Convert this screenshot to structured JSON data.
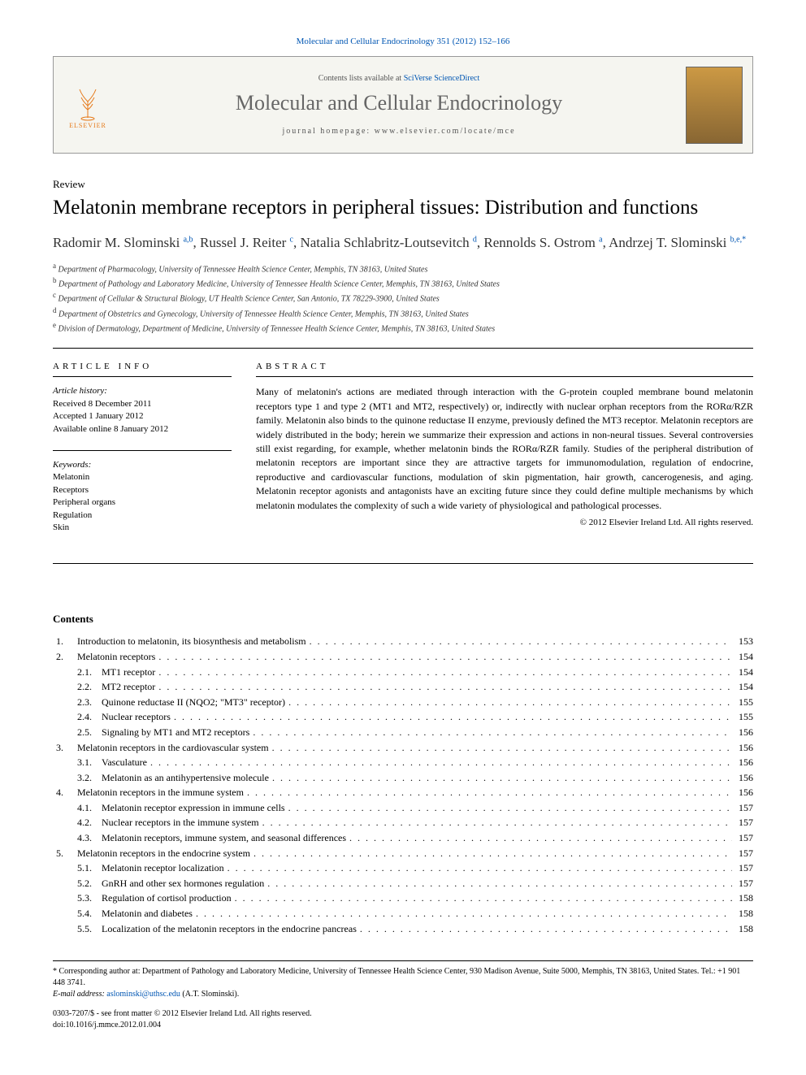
{
  "citation": "Molecular and Cellular Endocrinology 351 (2012) 152–166",
  "header": {
    "contents_available_prefix": "Contents lists available at ",
    "contents_available_link": "SciVerse ScienceDirect",
    "journal_name": "Molecular and Cellular Endocrinology",
    "homepage_prefix": "journal homepage: ",
    "homepage_url": "www.elsevier.com/locate/mce",
    "publisher_logo_text": "ELSEVIER"
  },
  "article": {
    "type": "Review",
    "title": "Melatonin membrane receptors in peripheral tissues: Distribution and functions",
    "authors_html": "Radomir M. Slominski <sup>a,b</sup>, Russel J. Reiter <sup>c</sup>, Natalia Schlabritz-Loutsevitch <sup>d</sup>, Rennolds S. Ostrom <sup>a</sup>, Andrzej T. Slominski <sup>b,e,*</sup>",
    "affiliations": [
      {
        "sup": "a",
        "text": "Department of Pharmacology, University of Tennessee Health Science Center, Memphis, TN 38163, United States"
      },
      {
        "sup": "b",
        "text": "Department of Pathology and Laboratory Medicine, University of Tennessee Health Science Center, Memphis, TN 38163, United States"
      },
      {
        "sup": "c",
        "text": "Department of Cellular & Structural Biology, UT Health Science Center, San Antonio, TX 78229-3900, United States"
      },
      {
        "sup": "d",
        "text": "Department of Obstetrics and Gynecology, University of Tennessee Health Science Center, Memphis, TN 38163, United States"
      },
      {
        "sup": "e",
        "text": "Division of Dermatology, Department of Medicine, University of Tennessee Health Science Center, Memphis, TN 38163, United States"
      }
    ]
  },
  "info": {
    "label": "ARTICLE INFO",
    "history_title": "Article history:",
    "history": [
      "Received 8 December 2011",
      "Accepted 1 January 2012",
      "Available online 8 January 2012"
    ],
    "keywords_title": "Keywords:",
    "keywords": [
      "Melatonin",
      "Receptors",
      "Peripheral organs",
      "Regulation",
      "Skin"
    ]
  },
  "abstract": {
    "label": "ABSTRACT",
    "text": "Many of melatonin's actions are mediated through interaction with the G-protein coupled membrane bound melatonin receptors type 1 and type 2 (MT1 and MT2, respectively) or, indirectly with nuclear orphan receptors from the RORα/RZR family. Melatonin also binds to the quinone reductase II enzyme, previously defined the MT3 receptor. Melatonin receptors are widely distributed in the body; herein we summarize their expression and actions in non-neural tissues. Several controversies still exist regarding, for example, whether melatonin binds the RORα/RZR family. Studies of the peripheral distribution of melatonin receptors are important since they are attractive targets for immunomodulation, regulation of endocrine, reproductive and cardiovascular functions, modulation of skin pigmentation, hair growth, cancerogenesis, and aging. Melatonin receptor agonists and antagonists have an exciting future since they could define multiple mechanisms by which melatonin modulates the complexity of such a wide variety of physiological and pathological processes.",
    "copyright": "© 2012 Elsevier Ireland Ltd. All rights reserved."
  },
  "contents": {
    "heading": "Contents",
    "items": [
      {
        "level": 1,
        "num": "1.",
        "title": "Introduction to melatonin, its biosynthesis and metabolism",
        "page": "153"
      },
      {
        "level": 1,
        "num": "2.",
        "title": "Melatonin receptors",
        "page": "154"
      },
      {
        "level": 2,
        "num": "2.1.",
        "title": "MT1 receptor",
        "page": "154"
      },
      {
        "level": 2,
        "num": "2.2.",
        "title": "MT2 receptor",
        "page": "154"
      },
      {
        "level": 2,
        "num": "2.3.",
        "title": "Quinone reductase II (NQO2; \"MT3\" receptor)",
        "page": "155"
      },
      {
        "level": 2,
        "num": "2.4.",
        "title": "Nuclear receptors",
        "page": "155"
      },
      {
        "level": 2,
        "num": "2.5.",
        "title": "Signaling by MT1 and MT2 receptors",
        "page": "156"
      },
      {
        "level": 1,
        "num": "3.",
        "title": "Melatonin receptors in the cardiovascular system",
        "page": "156"
      },
      {
        "level": 2,
        "num": "3.1.",
        "title": "Vasculature",
        "page": "156"
      },
      {
        "level": 2,
        "num": "3.2.",
        "title": "Melatonin as an antihypertensive molecule",
        "page": "156"
      },
      {
        "level": 1,
        "num": "4.",
        "title": "Melatonin receptors in the immune system",
        "page": "156"
      },
      {
        "level": 2,
        "num": "4.1.",
        "title": "Melatonin receptor expression in immune cells",
        "page": "157"
      },
      {
        "level": 2,
        "num": "4.2.",
        "title": "Nuclear receptors in the immune system",
        "page": "157"
      },
      {
        "level": 2,
        "num": "4.3.",
        "title": "Melatonin receptors, immune system, and seasonal differences",
        "page": "157"
      },
      {
        "level": 1,
        "num": "5.",
        "title": "Melatonin receptors in the endocrine system",
        "page": "157"
      },
      {
        "level": 2,
        "num": "5.1.",
        "title": "Melatonin receptor localization",
        "page": "157"
      },
      {
        "level": 2,
        "num": "5.2.",
        "title": "GnRH and other sex hormones regulation",
        "page": "157"
      },
      {
        "level": 2,
        "num": "5.3.",
        "title": "Regulation of cortisol production",
        "page": "158"
      },
      {
        "level": 2,
        "num": "5.4.",
        "title": "Melatonin and diabetes",
        "page": "158"
      },
      {
        "level": 2,
        "num": "5.5.",
        "title": "Localization of the melatonin receptors in the endocrine pancreas",
        "page": "158"
      }
    ]
  },
  "footer": {
    "corresponding": "* Corresponding author at: Department of Pathology and Laboratory Medicine, University of Tennessee Health Science Center, 930 Madison Avenue, Suite 5000, Memphis, TN 38163, United States. Tel.: +1 901 448 3741.",
    "email_label": "E-mail address: ",
    "email": "aslominski@uthsc.edu",
    "email_suffix": " (A.T. Slominski).",
    "issn_line": "0303-7207/$ - see front matter © 2012 Elsevier Ireland Ltd. All rights reserved.",
    "doi": "doi:10.1016/j.mmce.2012.01.004"
  },
  "colors": {
    "link": "#0056b3",
    "elsevier_orange": "#e67817",
    "journal_gray": "#666666",
    "text": "#000000",
    "header_bg": "#f5f5f0"
  }
}
